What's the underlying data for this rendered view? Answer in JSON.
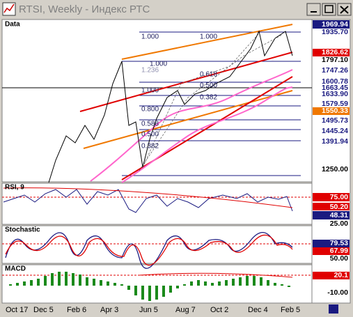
{
  "window": {
    "title": "RTSI, Weekly - Индекс РТС"
  },
  "panels": [
    {
      "label": "Data",
      "price_tags": [
        "1969.94",
        "1935.70",
        "1826.62",
        "1797.10",
        "1747.26",
        "1600.78",
        "1663.45",
        "1633.90",
        "1579.59",
        "1550.33",
        "1495.73",
        "1445.24",
        "1391.94",
        "1250.00"
      ],
      "fib_labels": [
        "1.000",
        "1.000",
        "1.000",
        "1.236",
        "0.618",
        "0.500",
        "0.382",
        "1.000",
        "0.800",
        "0.588",
        "0.500",
        "0.382"
      ]
    },
    {
      "label": "RSI, 9",
      "price_tags": [
        "75.00",
        "50.20",
        "48.31",
        "25.00"
      ]
    },
    {
      "label": "Stochastic",
      "price_tags": [
        "79.53",
        "67.99",
        "50.00"
      ]
    },
    {
      "label": "MACD",
      "price_tags": [
        "20.1",
        "-10.00"
      ]
    }
  ],
  "x_axis": [
    "Oct 17",
    "Dec 5",
    "Feb 6",
    "Apr 3",
    "Jun 5",
    "Aug 7",
    "Oct 2",
    "Dec 4",
    "Feb 5"
  ]
}
